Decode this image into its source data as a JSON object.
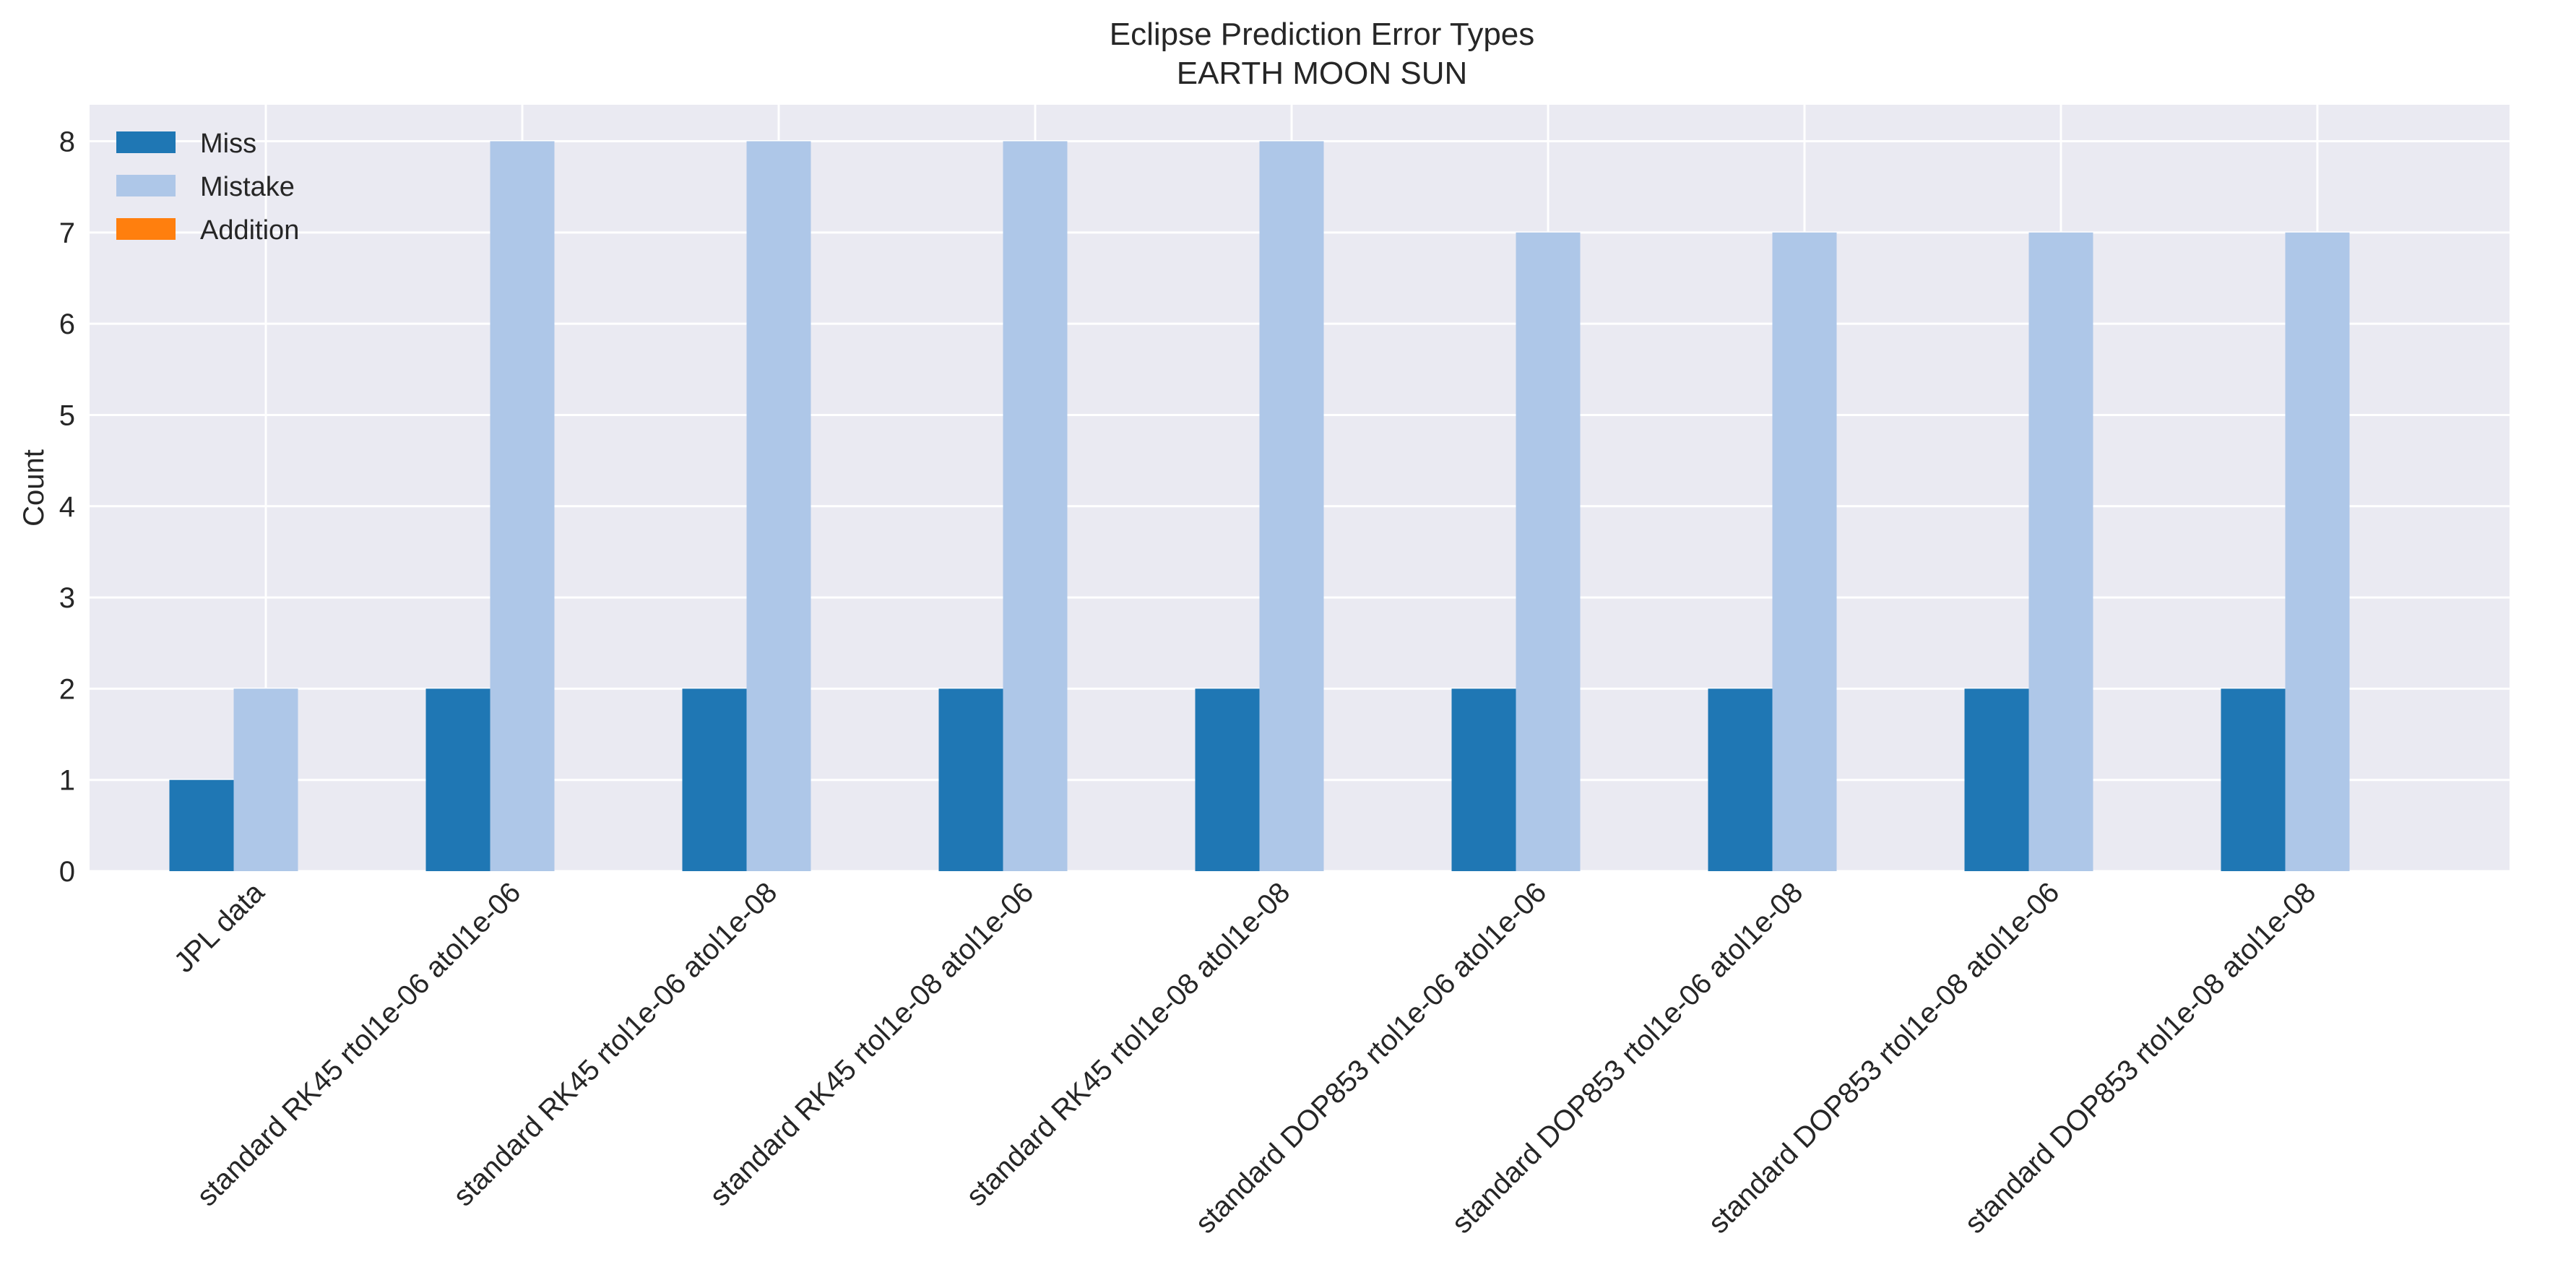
{
  "chart_data": {
    "type": "bar",
    "title": "Eclipse Prediction Error Types",
    "subtitle": "EARTH MOON SUN",
    "xlabel": "",
    "ylabel": "Count",
    "ylim": [
      0,
      8.4
    ],
    "yticks": [
      0,
      1,
      2,
      3,
      4,
      5,
      6,
      7,
      8
    ],
    "grid": true,
    "legend_position": "top-left",
    "categories": [
      "JPL data",
      "standard RK45 rtol1e-06 atol1e-06",
      "standard RK45 rtol1e-06 atol1e-08",
      "standard RK45 rtol1e-08 atol1e-06",
      "standard RK45 rtol1e-08 atol1e-08",
      "standard DOP853 rtol1e-06 atol1e-06",
      "standard DOP853 rtol1e-06 atol1e-08",
      "standard DOP853 rtol1e-08 atol1e-06",
      "standard DOP853 rtol1e-08 atol1e-08"
    ],
    "series": [
      {
        "name": "Miss",
        "color": "#1f77b4",
        "values": [
          1,
          2,
          2,
          2,
          2,
          2,
          2,
          2,
          2
        ]
      },
      {
        "name": "Mistake",
        "color": "#aec7e8",
        "values": [
          2,
          8,
          8,
          8,
          8,
          7,
          7,
          7,
          7
        ]
      },
      {
        "name": "Addition",
        "color": "#ff7f0e",
        "values": [
          0,
          0,
          0,
          0,
          0,
          0,
          0,
          0,
          0
        ]
      }
    ],
    "colors": {
      "plot_background": "#eaeaf2",
      "grid": "#ffffff"
    }
  }
}
